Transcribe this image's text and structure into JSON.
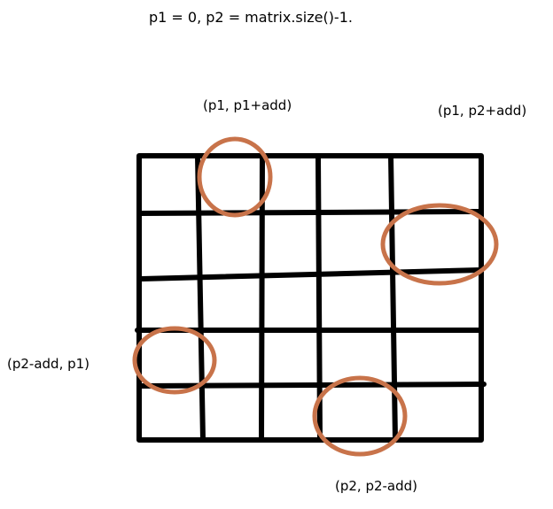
{
  "title": "p1 = 0, p2 = matrix.size()-1.",
  "labels": {
    "top_left": "(p1, p1+add)",
    "top_right": "(p1, p2+add)",
    "left": "(p2-add, p1)",
    "bottom": "(p2, p2-add)"
  },
  "grid": {
    "rows": 5,
    "cols": 5
  },
  "colors": {
    "grid_line": "#000000",
    "circle": "#c8734a",
    "background": "#ffffff"
  }
}
